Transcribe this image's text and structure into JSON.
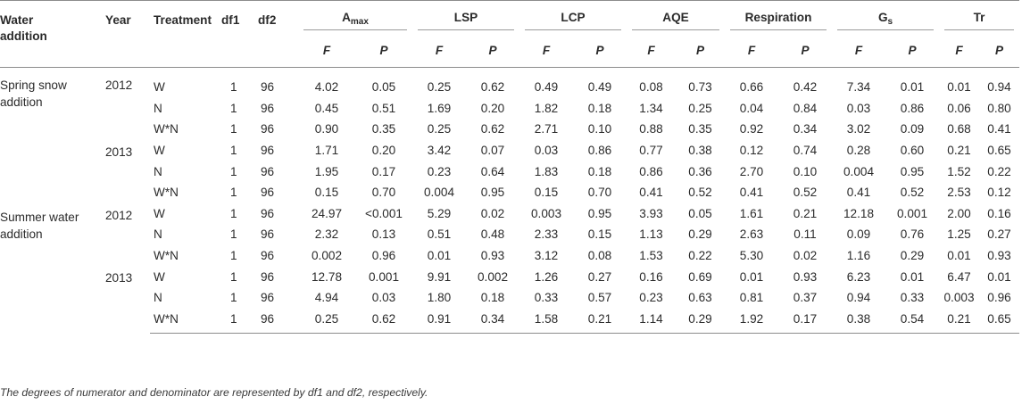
{
  "headers": {
    "water_addition": "Water addition",
    "year": "Year",
    "treatment": "Treatment",
    "df1": "df1",
    "df2": "df2",
    "amax_main": "A",
    "amax_sub": "max",
    "lsp": "LSP",
    "lcp": "LCP",
    "aqe": "AQE",
    "respiration": "Respiration",
    "gs_main": "G",
    "gs_sub": "s",
    "tr": "Tr",
    "f": "F",
    "p": "P"
  },
  "groups": [
    {
      "label": "Spring snow addition",
      "years": [
        {
          "year": "2012",
          "rows": [
            {
              "treatment": "W",
              "df1": "1",
              "df2": "96",
              "values": [
                "4.02",
                "0.05",
                "0.25",
                "0.62",
                "0.49",
                "0.49",
                "0.08",
                "0.73",
                "0.66",
                "0.42",
                "7.34",
                "0.01",
                "0.01",
                "0.94"
              ]
            },
            {
              "treatment": "N",
              "df1": "1",
              "df2": "96",
              "values": [
                "0.45",
                "0.51",
                "1.69",
                "0.20",
                "1.82",
                "0.18",
                "1.34",
                "0.25",
                "0.04",
                "0.84",
                "0.03",
                "0.86",
                "0.06",
                "0.80"
              ]
            },
            {
              "treatment": "W*N",
              "df1": "1",
              "df2": "96",
              "values": [
                "0.90",
                "0.35",
                "0.25",
                "0.62",
                "2.71",
                "0.10",
                "0.88",
                "0.35",
                "0.92",
                "0.34",
                "3.02",
                "0.09",
                "0.68",
                "0.41"
              ]
            }
          ]
        },
        {
          "year": "2013",
          "rows": [
            {
              "treatment": "W",
              "df1": "1",
              "df2": "96",
              "values": [
                "1.71",
                "0.20",
                "3.42",
                "0.07",
                "0.03",
                "0.86",
                "0.77",
                "0.38",
                "0.12",
                "0.74",
                "0.28",
                "0.60",
                "0.21",
                "0.65"
              ]
            },
            {
              "treatment": "N",
              "df1": "1",
              "df2": "96",
              "values": [
                "1.95",
                "0.17",
                "0.23",
                "0.64",
                "1.83",
                "0.18",
                "0.86",
                "0.36",
                "2.70",
                "0.10",
                "0.004",
                "0.95",
                "1.52",
                "0.22"
              ]
            },
            {
              "treatment": "W*N",
              "df1": "1",
              "df2": "96",
              "values": [
                "0.15",
                "0.70",
                "0.004",
                "0.95",
                "0.15",
                "0.70",
                "0.41",
                "0.52",
                "0.41",
                "0.52",
                "0.41",
                "0.52",
                "2.53",
                "0.12"
              ]
            }
          ]
        }
      ]
    },
    {
      "label": "Summer water addition",
      "years": [
        {
          "year": "2012",
          "rows": [
            {
              "treatment": "W",
              "df1": "1",
              "df2": "96",
              "values": [
                "24.97",
                "<0.001",
                "5.29",
                "0.02",
                "0.003",
                "0.95",
                "3.93",
                "0.05",
                "1.61",
                "0.21",
                "12.18",
                "0.001",
                "2.00",
                "0.16"
              ]
            },
            {
              "treatment": "N",
              "df1": "1",
              "df2": "96",
              "values": [
                "2.32",
                "0.13",
                "0.51",
                "0.48",
                "2.33",
                "0.15",
                "1.13",
                "0.29",
                "2.63",
                "0.11",
                "0.09",
                "0.76",
                "1.25",
                "0.27"
              ]
            },
            {
              "treatment": "W*N",
              "df1": "1",
              "df2": "96",
              "values": [
                "0.002",
                "0.96",
                "0.01",
                "0.93",
                "3.12",
                "0.08",
                "1.53",
                "0.22",
                "5.30",
                "0.02",
                "1.16",
                "0.29",
                "0.01",
                "0.93"
              ]
            }
          ]
        },
        {
          "year": "2013",
          "rows": [
            {
              "treatment": "W",
              "df1": "1",
              "df2": "96",
              "values": [
                "12.78",
                "0.001",
                "9.91",
                "0.002",
                "1.26",
                "0.27",
                "0.16",
                "0.69",
                "0.01",
                "0.93",
                "6.23",
                "0.01",
                "6.47",
                "0.01"
              ]
            },
            {
              "treatment": "N",
              "df1": "1",
              "df2": "96",
              "values": [
                "4.94",
                "0.03",
                "1.80",
                "0.18",
                "0.33",
                "0.57",
                "0.23",
                "0.63",
                "0.81",
                "0.37",
                "0.94",
                "0.33",
                "0.003",
                "0.96"
              ]
            },
            {
              "treatment": "W*N",
              "df1": "1",
              "df2": "96",
              "values": [
                "0.25",
                "0.62",
                "0.91",
                "0.34",
                "1.58",
                "0.21",
                "1.14",
                "0.29",
                "1.92",
                "0.17",
                "0.38",
                "0.54",
                "0.21",
                "0.65"
              ]
            }
          ]
        }
      ]
    }
  ],
  "footnote": "The degrees of numerator and denominator are represented by df1 and df2, respectively."
}
